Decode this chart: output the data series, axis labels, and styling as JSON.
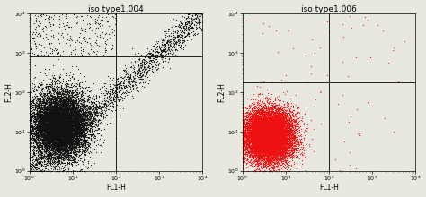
{
  "plot1": {
    "title": "iso type1.004",
    "dot_color": "#111111",
    "dot_size": 0.8,
    "xlim": [
      1.0,
      10000.0
    ],
    "ylim": [
      1.0,
      10000.0
    ],
    "xlabel": "FL1-H",
    "ylabel": "FL2-H",
    "quadrant_x": 100.0,
    "quadrant_y": 800.0
  },
  "plot2": {
    "title": "iso type1.006",
    "dot_color": "#ee1111",
    "dot_size": 0.8,
    "xlim": [
      1.0,
      10000.0
    ],
    "ylim": [
      1.0,
      10000.0
    ],
    "xlabel": "FL1-H",
    "ylabel": "FL2-H",
    "quadrant_x": 100.0,
    "quadrant_y": 180.0
  },
  "bg_color": "#e8e8e0",
  "title_fontsize": 6.5,
  "label_fontsize": 5.5,
  "tick_fontsize": 4.5
}
